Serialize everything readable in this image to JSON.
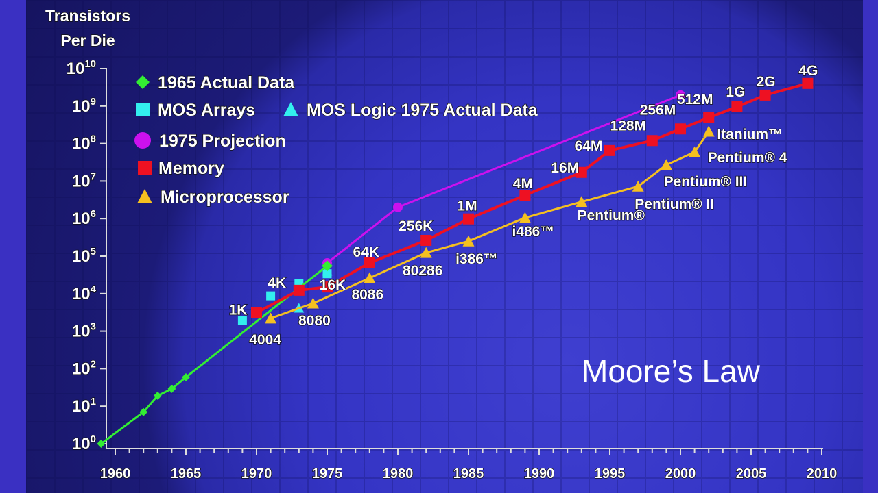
{
  "chart_data": {
    "type": "line",
    "ylabel": "Transistors Per Die",
    "ylabel_lines": [
      "Transistors",
      "Per Die"
    ],
    "yscale": "log10",
    "ylim": [
      1,
      10000000000
    ],
    "ytick_exponents": [
      0,
      1,
      2,
      3,
      4,
      5,
      6,
      7,
      8,
      9,
      10
    ],
    "xlim": [
      1959,
      2010
    ],
    "xticks": [
      1960,
      1965,
      1970,
      1975,
      1980,
      1985,
      1990,
      1995,
      2000,
      2005,
      2010
    ],
    "legend": [
      "1965 Actual Data",
      "MOS Arrays",
      "MOS Logic 1975 Actual Data",
      "1975 Projection",
      "Memory",
      "Microprocessor"
    ],
    "legend_placement": "top-left",
    "annotation": "Moore’s Law",
    "colors": {
      "actual1965": "#33ee33",
      "mos": "#33eeee",
      "projection": "#cc11ee",
      "memory": "#ee1122",
      "micro": "#f5c020"
    },
    "series": [
      {
        "name": "1965 Actual Data",
        "marker": "diamond",
        "points": [
          [
            1959,
            1
          ],
          [
            1962,
            7
          ],
          [
            1963,
            19
          ],
          [
            1964,
            29
          ],
          [
            1965,
            59
          ],
          [
            1975,
            55000
          ]
        ]
      },
      {
        "name": "MOS Arrays",
        "marker": "square",
        "points": [
          [
            1969,
            1900
          ],
          [
            1971,
            8700
          ],
          [
            1973,
            18600
          ],
          [
            1975,
            34000
          ]
        ]
      },
      {
        "name": "MOS Logic 1975 Actual Data",
        "marker": "triangle",
        "points": [
          [
            1973,
            4100
          ],
          [
            1975,
            40000
          ]
        ]
      },
      {
        "name": "1975 Projection",
        "marker": "circle",
        "points": [
          [
            1975,
            65536
          ],
          [
            1980,
            2000000
          ],
          [
            2000,
            1950000000
          ]
        ]
      },
      {
        "name": "Memory",
        "marker": "square",
        "points": [
          [
            1970,
            3100,
            "1K"
          ],
          [
            1973,
            12300,
            "4K"
          ],
          [
            1975,
            15000,
            "16K"
          ],
          [
            1978,
            66000,
            "64K"
          ],
          [
            1982,
            263000,
            "256K"
          ],
          [
            1985,
            980000,
            "1M"
          ],
          [
            1989,
            4200000,
            "4M"
          ],
          [
            1993,
            17000000,
            "16M"
          ],
          [
            1995,
            65000000,
            "64M"
          ],
          [
            1998,
            120000000,
            "128M"
          ],
          [
            2000,
            245000000,
            "256M"
          ],
          [
            2002,
            490000000,
            "512M"
          ],
          [
            2004,
            950000000,
            "1G"
          ],
          [
            2006,
            1950000000,
            "2G"
          ],
          [
            2009,
            4000000000,
            "4G"
          ]
        ]
      },
      {
        "name": "Microprocessor",
        "marker": "triangle",
        "points": [
          [
            1971,
            2200,
            "4004"
          ],
          [
            1974,
            5500,
            "8080"
          ],
          [
            1978,
            26000,
            "8086"
          ],
          [
            1982,
            123000,
            "80286"
          ],
          [
            1985,
            250000,
            "i386™"
          ],
          [
            1989,
            1050000,
            "i486™"
          ],
          [
            1993,
            2800000,
            "Pentium®"
          ],
          [
            1997,
            7200000,
            "Pentium® II"
          ],
          [
            1999,
            27000000,
            "Pentium® III"
          ],
          [
            2001,
            59000000,
            "Pentium® 4"
          ],
          [
            2002,
            210000000,
            "Itanium™"
          ]
        ]
      }
    ]
  }
}
